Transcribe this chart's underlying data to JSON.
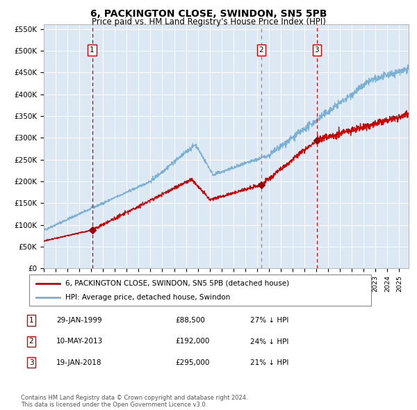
{
  "title": "6, PACKINGTON CLOSE, SWINDON, SN5 5PB",
  "subtitle": "Price paid vs. HM Land Registry's House Price Index (HPI)",
  "background_color": "#dce9f5",
  "ylim": [
    0,
    560000
  ],
  "yticks": [
    0,
    50000,
    100000,
    150000,
    200000,
    250000,
    300000,
    350000,
    400000,
    450000,
    500000,
    550000
  ],
  "ytick_labels": [
    "£0",
    "£50K",
    "£100K",
    "£150K",
    "£200K",
    "£250K",
    "£300K",
    "£350K",
    "£400K",
    "£450K",
    "£500K",
    "£550K"
  ],
  "xmin": 1995.0,
  "xmax": 2025.8,
  "purchases": [
    {
      "date_num": 1999.08,
      "price": 88500,
      "label": "1"
    },
    {
      "date_num": 2013.36,
      "price": 192000,
      "label": "2"
    },
    {
      "date_num": 2018.05,
      "price": 295000,
      "label": "3"
    }
  ],
  "vlines_solid": [
    1999.08,
    2018.05
  ],
  "vlines_dashed": [
    2013.36
  ],
  "legend_entries": [
    "6, PACKINGTON CLOSE, SWINDON, SN5 5PB (detached house)",
    "HPI: Average price, detached house, Swindon"
  ],
  "table_rows": [
    {
      "num": "1",
      "date": "29-JAN-1999",
      "price": "£88,500",
      "note": "27% ↓ HPI"
    },
    {
      "num": "2",
      "date": "10-MAY-2013",
      "price": "£192,000",
      "note": "24% ↓ HPI"
    },
    {
      "num": "3",
      "date": "19-JAN-2018",
      "price": "£295,000",
      "note": "21% ↓ HPI"
    }
  ],
  "footnote": "Contains HM Land Registry data © Crown copyright and database right 2024.\nThis data is licensed under the Open Government Licence v3.0.",
  "red_color": "#cc0000",
  "blue_color": "#7ab0d4",
  "marker_color": "#990000",
  "grid_color": "#ffffff"
}
